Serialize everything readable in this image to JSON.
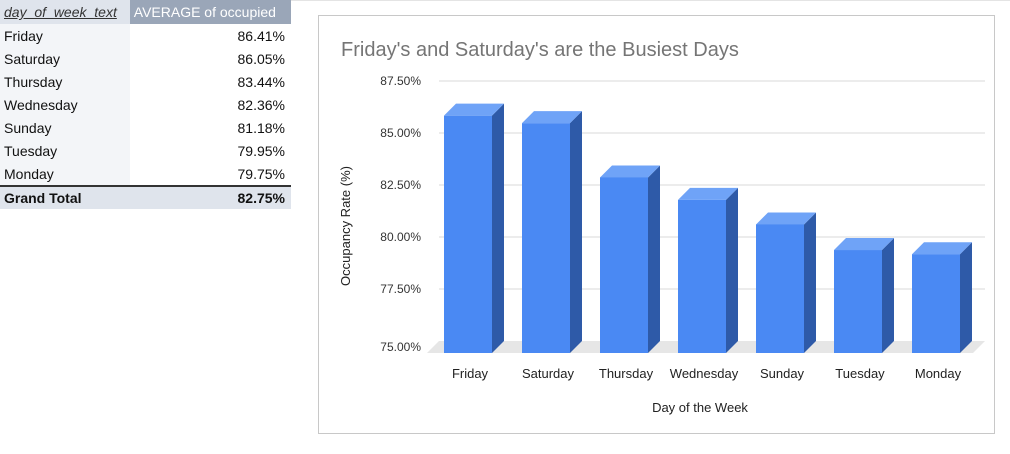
{
  "pivot": {
    "headers": [
      "day_of_week_text",
      "AVERAGE of occupied"
    ],
    "rows": [
      {
        "day": "Friday",
        "value": "86.41%"
      },
      {
        "day": "Saturday",
        "value": "86.05%"
      },
      {
        "day": "Thursday",
        "value": "83.44%"
      },
      {
        "day": "Wednesday",
        "value": "82.36%"
      },
      {
        "day": "Sunday",
        "value": "81.18%"
      },
      {
        "day": "Tuesday",
        "value": "79.95%"
      },
      {
        "day": "Monday",
        "value": "79.75%"
      }
    ],
    "total": {
      "label": "Grand Total",
      "value": "82.75%"
    }
  },
  "chart_data": {
    "type": "bar",
    "title": "Friday's and Saturday's are the Busiest Days",
    "xlabel": "Day of the Week",
    "ylabel": "Occupancy Rate (%)",
    "categories": [
      "Friday",
      "Saturday",
      "Thursday",
      "Wednesday",
      "Sunday",
      "Tuesday",
      "Monday"
    ],
    "values": [
      86.41,
      86.05,
      83.44,
      82.36,
      81.18,
      79.95,
      79.75
    ],
    "ylim": [
      75,
      87.5
    ],
    "yticks": [
      "75.00%",
      "77.50%",
      "80.00%",
      "82.50%",
      "85.00%",
      "87.50%"
    ],
    "grid": true,
    "style": "3d",
    "colors": {
      "front": "#4a89f3",
      "side": "#2e5aa8",
      "top": "#6fa3f7",
      "floor": "#e6e6e6"
    }
  }
}
